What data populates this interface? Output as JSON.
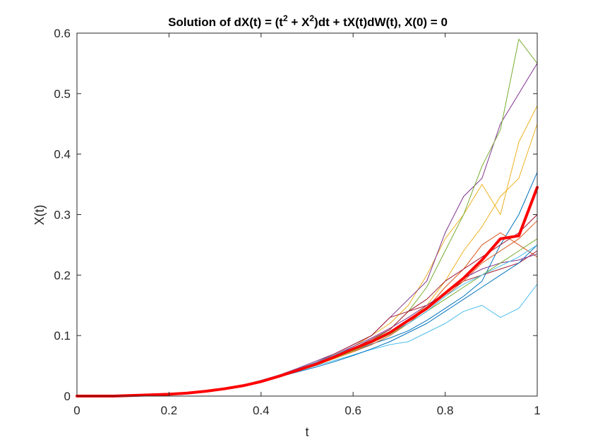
{
  "chart_data": {
    "type": "line",
    "title": {
      "prefix": "Solution of dX(t) = (t",
      "sup1": "2",
      "mid": " + X",
      "sup2": "2",
      "suffix": ")dt + tX(t)dW(t), X(0) = 0"
    },
    "xlabel": "t",
    "ylabel": "X(t)",
    "xlim": [
      0,
      1
    ],
    "ylim": [
      0,
      0.6
    ],
    "xticks": [
      0,
      0.2,
      0.4,
      0.6,
      0.8,
      1
    ],
    "xtick_labels": [
      "0",
      "0.2",
      "0.4",
      "0.6",
      "0.8",
      "1"
    ],
    "yticks": [
      0,
      0.1,
      0.2,
      0.3,
      0.4,
      0.5,
      0.6
    ],
    "ytick_labels": [
      "0",
      "0.1",
      "0.2",
      "0.3",
      "0.4",
      "0.5",
      "0.6"
    ],
    "grid": false,
    "legend": "none",
    "x": [
      0,
      0.04,
      0.08,
      0.12,
      0.16,
      0.2,
      0.24,
      0.28,
      0.32,
      0.36,
      0.4,
      0.44,
      0.48,
      0.52,
      0.56,
      0.6,
      0.64,
      0.68,
      0.72,
      0.76,
      0.8,
      0.84,
      0.88,
      0.92,
      0.96,
      1.0
    ],
    "series": [
      {
        "color": "#0072BD",
        "width": 1,
        "values": [
          0,
          0,
          0,
          0.001,
          0.002,
          0.003,
          0.005,
          0.008,
          0.012,
          0.018,
          0.026,
          0.034,
          0.044,
          0.053,
          0.064,
          0.074,
          0.086,
          0.096,
          0.108,
          0.125,
          0.145,
          0.165,
          0.19,
          0.25,
          0.3,
          0.37
        ]
      },
      {
        "color": "#D95319",
        "width": 1,
        "values": [
          0,
          0,
          0,
          0.001,
          0.002,
          0.003,
          0.005,
          0.008,
          0.012,
          0.017,
          0.024,
          0.033,
          0.042,
          0.052,
          0.062,
          0.073,
          0.085,
          0.1,
          0.12,
          0.145,
          0.18,
          0.21,
          0.25,
          0.27,
          0.25,
          0.23
        ]
      },
      {
        "color": "#EDB120",
        "width": 1,
        "values": [
          0,
          0,
          0,
          0.001,
          0.002,
          0.003,
          0.005,
          0.008,
          0.012,
          0.017,
          0.025,
          0.034,
          0.045,
          0.056,
          0.068,
          0.082,
          0.1,
          0.12,
          0.15,
          0.2,
          0.26,
          0.3,
          0.35,
          0.3,
          0.42,
          0.48
        ]
      },
      {
        "color": "#7E2F8E",
        "width": 1,
        "values": [
          0,
          0,
          0,
          0.001,
          0.002,
          0.003,
          0.005,
          0.008,
          0.012,
          0.018,
          0.026,
          0.035,
          0.046,
          0.058,
          0.07,
          0.085,
          0.1,
          0.13,
          0.16,
          0.19,
          0.27,
          0.33,
          0.36,
          0.45,
          0.5,
          0.55
        ]
      },
      {
        "color": "#77AC30",
        "width": 1,
        "values": [
          0,
          0,
          0,
          0.001,
          0.002,
          0.003,
          0.005,
          0.008,
          0.012,
          0.017,
          0.024,
          0.032,
          0.042,
          0.052,
          0.064,
          0.077,
          0.092,
          0.11,
          0.14,
          0.18,
          0.24,
          0.3,
          0.38,
          0.44,
          0.59,
          0.55
        ]
      },
      {
        "color": "#4DBEEE",
        "width": 1,
        "values": [
          0,
          0,
          0,
          0.001,
          0.002,
          0.003,
          0.005,
          0.008,
          0.012,
          0.017,
          0.024,
          0.032,
          0.041,
          0.05,
          0.059,
          0.068,
          0.077,
          0.085,
          0.09,
          0.105,
          0.12,
          0.14,
          0.15,
          0.13,
          0.145,
          0.185
        ]
      },
      {
        "color": "#A2142F",
        "width": 1,
        "values": [
          0,
          0,
          0,
          0.001,
          0.002,
          0.003,
          0.005,
          0.008,
          0.012,
          0.017,
          0.025,
          0.034,
          0.044,
          0.056,
          0.07,
          0.085,
          0.1,
          0.13,
          0.14,
          0.15,
          0.17,
          0.19,
          0.2,
          0.21,
          0.22,
          0.24
        ]
      },
      {
        "color": "#0072BD",
        "width": 1,
        "values": [
          0,
          0,
          0,
          0.001,
          0.002,
          0.003,
          0.005,
          0.008,
          0.012,
          0.017,
          0.024,
          0.032,
          0.04,
          0.048,
          0.057,
          0.067,
          0.078,
          0.09,
          0.105,
          0.12,
          0.14,
          0.16,
          0.18,
          0.2,
          0.22,
          0.25
        ]
      },
      {
        "color": "#D95319",
        "width": 1,
        "values": [
          0,
          0,
          0,
          0.001,
          0.002,
          0.003,
          0.005,
          0.008,
          0.012,
          0.017,
          0.024,
          0.032,
          0.042,
          0.053,
          0.065,
          0.077,
          0.09,
          0.105,
          0.12,
          0.14,
          0.165,
          0.19,
          0.22,
          0.24,
          0.26,
          0.29
        ]
      },
      {
        "color": "#EDB120",
        "width": 1,
        "values": [
          0,
          0,
          0,
          0.001,
          0.002,
          0.003,
          0.005,
          0.008,
          0.012,
          0.017,
          0.024,
          0.032,
          0.041,
          0.051,
          0.062,
          0.074,
          0.088,
          0.105,
          0.125,
          0.15,
          0.19,
          0.24,
          0.28,
          0.33,
          0.36,
          0.45
        ]
      },
      {
        "color": "#7E2F8E",
        "width": 1,
        "values": [
          0,
          0,
          0,
          0.001,
          0.002,
          0.003,
          0.005,
          0.008,
          0.012,
          0.017,
          0.024,
          0.033,
          0.043,
          0.055,
          0.068,
          0.082,
          0.096,
          0.112,
          0.13,
          0.15,
          0.17,
          0.195,
          0.21,
          0.22,
          0.225,
          0.235
        ]
      },
      {
        "color": "#77AC30",
        "width": 1,
        "values": [
          0,
          0,
          0,
          0.001,
          0.002,
          0.003,
          0.005,
          0.008,
          0.012,
          0.017,
          0.024,
          0.032,
          0.042,
          0.052,
          0.063,
          0.075,
          0.088,
          0.102,
          0.12,
          0.14,
          0.16,
          0.18,
          0.2,
          0.22,
          0.24,
          0.26
        ]
      },
      {
        "color": "#4DBEEE",
        "width": 1,
        "values": [
          0,
          0,
          0,
          0.001,
          0.002,
          0.003,
          0.005,
          0.008,
          0.012,
          0.018,
          0.026,
          0.035,
          0.045,
          0.056,
          0.068,
          0.08,
          0.092,
          0.105,
          0.12,
          0.14,
          0.165,
          0.185,
          0.2,
          0.215,
          0.23,
          0.25
        ]
      },
      {
        "color": "#A2142F",
        "width": 1,
        "values": [
          0,
          0,
          0,
          0.001,
          0.002,
          0.003,
          0.005,
          0.008,
          0.012,
          0.017,
          0.024,
          0.033,
          0.043,
          0.054,
          0.066,
          0.079,
          0.094,
          0.11,
          0.14,
          0.16,
          0.19,
          0.21,
          0.23,
          0.25,
          0.27,
          0.3
        ]
      },
      {
        "color": "#FF0000",
        "width": 4,
        "values": [
          0,
          0,
          0,
          0.001,
          0.002,
          0.003,
          0.005,
          0.008,
          0.012,
          0.017,
          0.024,
          0.033,
          0.043,
          0.053,
          0.065,
          0.078,
          0.09,
          0.105,
          0.125,
          0.145,
          0.17,
          0.195,
          0.225,
          0.26,
          0.265,
          0.345
        ]
      }
    ]
  }
}
